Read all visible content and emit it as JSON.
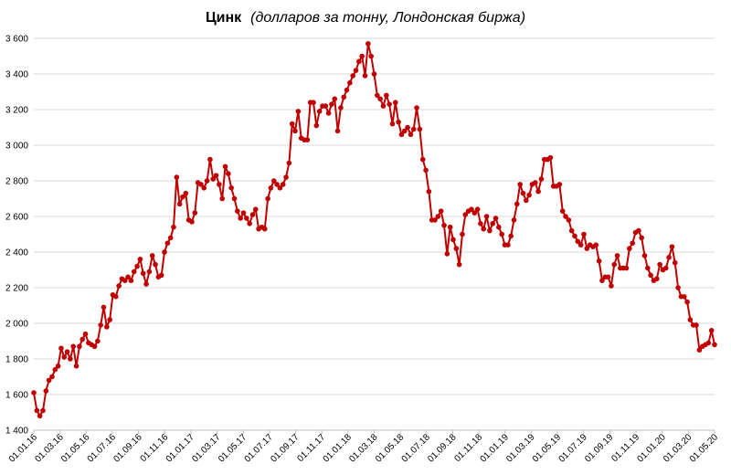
{
  "chart_data": {
    "type": "line",
    "title": "Цинк",
    "subtitle": "(долларов за тонну, Лондонская биржа)",
    "xlabel": "",
    "ylabel": "",
    "ylim": [
      1400,
      3600
    ],
    "yticks": [
      1400,
      1600,
      1800,
      2000,
      2200,
      2400,
      2600,
      2800,
      3000,
      3200,
      3400,
      3600
    ],
    "ytick_labels": [
      "1 400",
      "1 600",
      "1 800",
      "2 000",
      "2 200",
      "2 400",
      "2 600",
      "2 800",
      "3 000",
      "3 200",
      "3 400",
      "3 600"
    ],
    "x_tick_labels": [
      "01.01.16",
      "01.03.16",
      "01.05.16",
      "01.07.16",
      "01.09.16",
      "01.11.16",
      "01.01.17",
      "01.03.17",
      "01.05.17",
      "01.07.17",
      "01.09.17",
      "01.11.17",
      "01.01.18",
      "01.03.18",
      "01.05.18",
      "01.07.18",
      "01.09.18",
      "01.11.18",
      "01.01.19",
      "01.03.19",
      "01.05.19",
      "01.07.19",
      "01.09.19",
      "01.11.19",
      "01.01.20",
      "01.03.20",
      "01.05.20"
    ],
    "grid": true,
    "legend": "none",
    "color": "#c00000",
    "series": [
      {
        "name": "",
        "values": [
          1610,
          1510,
          1480,
          1510,
          1620,
          1680,
          1700,
          1740,
          1760,
          1860,
          1810,
          1840,
          1800,
          1870,
          1760,
          1870,
          1910,
          1940,
          1890,
          1880,
          1870,
          1900,
          1990,
          2090,
          1980,
          2020,
          2160,
          2150,
          2210,
          2250,
          2240,
          2260,
          2240,
          2290,
          2320,
          2360,
          2280,
          2220,
          2290,
          2380,
          2330,
          2260,
          2270,
          2400,
          2450,
          2480,
          2540,
          2820,
          2670,
          2710,
          2730,
          2580,
          2570,
          2620,
          2790,
          2780,
          2760,
          2800,
          2920,
          2810,
          2830,
          2780,
          2700,
          2880,
          2840,
          2760,
          2700,
          2630,
          2590,
          2620,
          2590,
          2560,
          2610,
          2640,
          2530,
          2540,
          2530,
          2700,
          2760,
          2800,
          2780,
          2760,
          2780,
          2820,
          2900,
          3120,
          3080,
          3190,
          3040,
          3030,
          3030,
          3240,
          3240,
          3110,
          3190,
          3220,
          3220,
          3180,
          3230,
          3260,
          3080,
          3210,
          3270,
          3310,
          3350,
          3390,
          3420,
          3470,
          3500,
          3390,
          3570,
          3500,
          3400,
          3280,
          3260,
          3220,
          3280,
          3230,
          3120,
          3240,
          3130,
          3060,
          3080,
          3100,
          3060,
          3090,
          3210,
          3090,
          2920,
          2860,
          2740,
          2580,
          2580,
          2600,
          2630,
          2550,
          2390,
          2540,
          2470,
          2420,
          2330,
          2500,
          2610,
          2630,
          2640,
          2620,
          2640,
          2560,
          2530,
          2600,
          2520,
          2560,
          2590,
          2540,
          2500,
          2440,
          2440,
          2490,
          2580,
          2670,
          2780,
          2730,
          2690,
          2720,
          2780,
          2790,
          2740,
          2810,
          2920,
          2920,
          2930,
          2770,
          2770,
          2780,
          2630,
          2600,
          2580,
          2520,
          2490,
          2460,
          2440,
          2500,
          2420,
          2440,
          2430,
          2440,
          2350,
          2240,
          2260,
          2260,
          2210,
          2330,
          2380,
          2310,
          2310,
          2310,
          2420,
          2450,
          2510,
          2520,
          2480,
          2380,
          2310,
          2270,
          2240,
          2250,
          2330,
          2300,
          2310,
          2370,
          2430,
          2340,
          2200,
          2150,
          2150,
          2120,
          2020,
          1990,
          1990,
          1850,
          1870,
          1880,
          1890,
          1960,
          1880
        ]
      }
    ]
  }
}
